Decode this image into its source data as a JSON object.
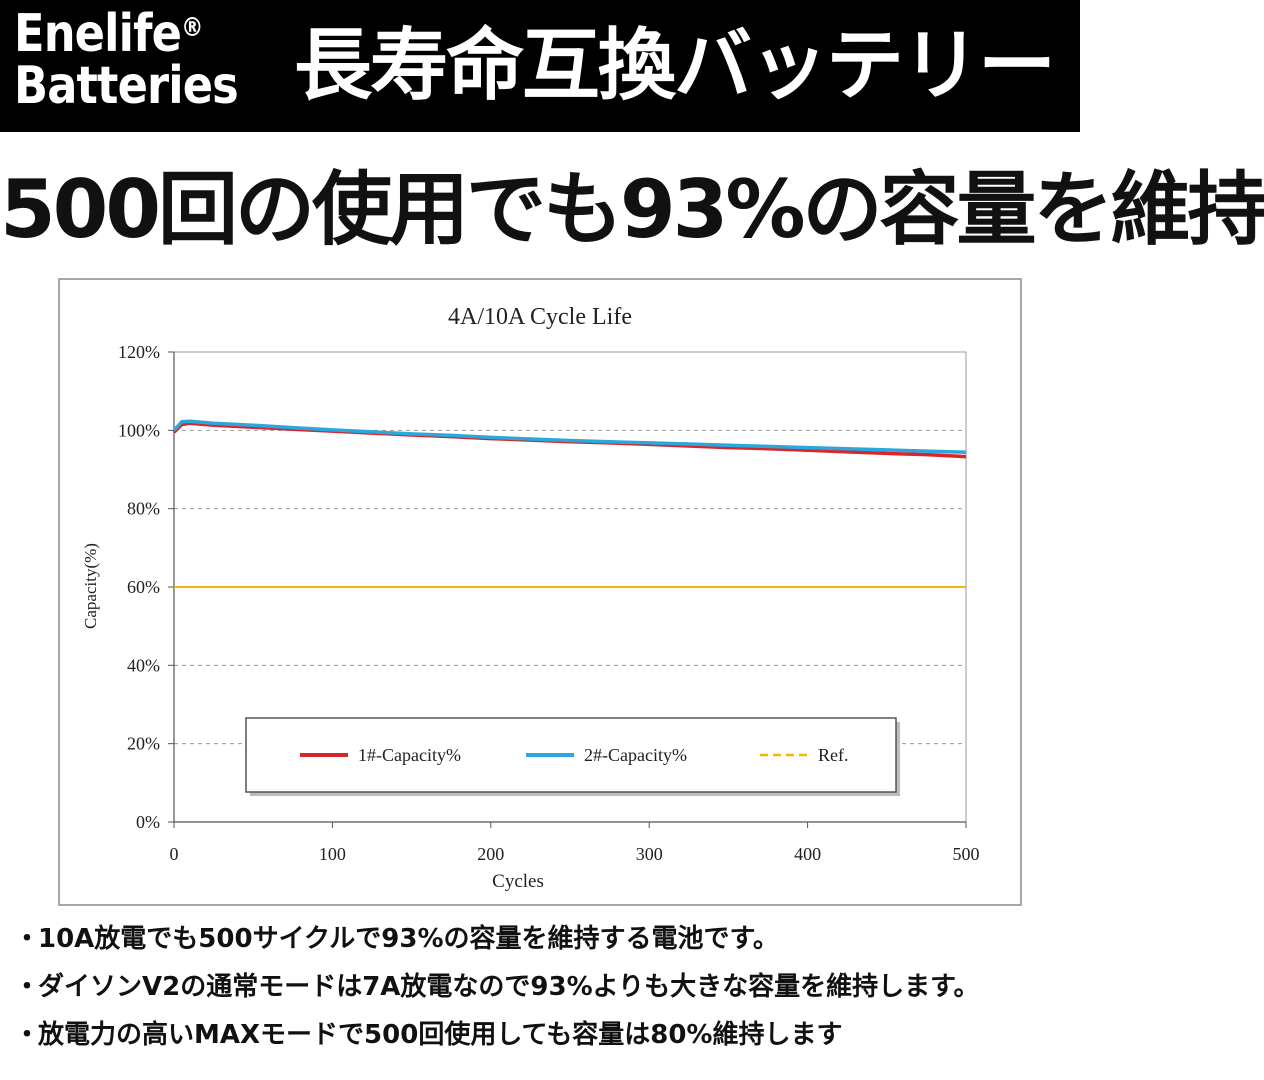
{
  "header": {
    "brand_line1": "Enelife",
    "brand_reg": "®",
    "brand_line2": "Batteries",
    "title": "長寿命互換バッテリー"
  },
  "headline": "500回の使用でも93%の容量を維持",
  "colors": {
    "series1": "#d9252b",
    "series2": "#2aa8dc",
    "ref": "#f2b705"
  },
  "chart_data": {
    "type": "line",
    "title": "4A/10A Cycle Life",
    "xlabel": "Cycles",
    "ylabel": "Capacity(%)",
    "xlim": [
      0,
      500
    ],
    "ylim": [
      0,
      120
    ],
    "xticks": [
      "0",
      "100",
      "200",
      "300",
      "400",
      "500"
    ],
    "yticks": [
      "0%",
      "20%",
      "40%",
      "60%",
      "80%",
      "100%",
      "120%"
    ],
    "grid": "horizontal dashed",
    "legend_position": "bottom-center",
    "series": [
      {
        "name": "1#-Capacity%",
        "style": "solid",
        "x": [
          0,
          5,
          10,
          25,
          50,
          75,
          100,
          125,
          150,
          175,
          200,
          225,
          250,
          275,
          300,
          325,
          350,
          375,
          400,
          425,
          450,
          475,
          500
        ],
        "y": [
          99.5,
          101.5,
          101.8,
          101.3,
          100.8,
          100.3,
          99.8,
          99.3,
          98.8,
          98.4,
          97.9,
          97.5,
          97.1,
          96.8,
          96.4,
          96.0,
          95.6,
          95.3,
          94.9,
          94.5,
          94.1,
          93.8,
          93.3
        ]
      },
      {
        "name": "2#-Capacity%",
        "style": "solid",
        "x": [
          0,
          5,
          10,
          25,
          50,
          75,
          100,
          125,
          150,
          175,
          200,
          225,
          250,
          275,
          300,
          325,
          350,
          375,
          400,
          425,
          450,
          475,
          500
        ],
        "y": [
          100.0,
          102.2,
          102.3,
          101.8,
          101.3,
          100.7,
          100.1,
          99.6,
          99.1,
          98.7,
          98.2,
          97.8,
          97.4,
          97.1,
          96.8,
          96.5,
          96.2,
          95.9,
          95.6,
          95.3,
          95.0,
          94.7,
          94.4
        ]
      },
      {
        "name": "Ref.",
        "style": "dashed",
        "x": [
          0,
          500
        ],
        "y": [
          60,
          60
        ]
      }
    ]
  },
  "bullets": [
    {
      "dot": "・",
      "text": "10A放電でも500サイクルで93%の容量を維持する電池です。"
    },
    {
      "dot": "・",
      "text": "ダイソンV2の通常モードは7A放電なので93%よりも大きな容量を維持します。"
    },
    {
      "dot": "・",
      "text": "放電力の高いMAXモードで500回使用しても容量は80%維持します"
    }
  ]
}
